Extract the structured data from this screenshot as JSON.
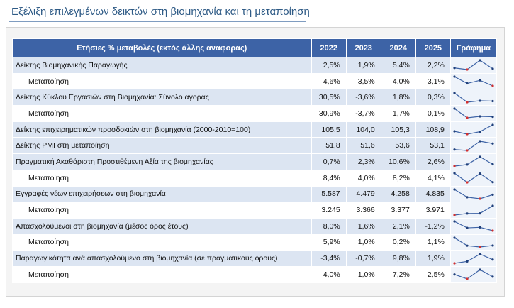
{
  "header": {
    "title": "Εξέλιξη επιλεγμένων δεικτών στη βιομηχανία και τη μεταποίηση"
  },
  "table": {
    "columns": [
      "Ετήσιες % μεταβολές (εκτός άλλης αναφοράς)",
      "2022",
      "2023",
      "2024",
      "2025",
      "Γράφημα"
    ],
    "rows": [
      {
        "label": "Δείκτης Βιομηχανικής Παραγωγής",
        "sub": false,
        "values": [
          2.5,
          1.9,
          5.4,
          2.2
        ],
        "value_labels": [
          "2,5%",
          "1,9%",
          "5.4%",
          "2,2%"
        ]
      },
      {
        "label": "Μεταποίηση",
        "sub": true,
        "values": [
          4.6,
          3.5,
          4.0,
          3.1
        ],
        "value_labels": [
          "4,6%",
          "3,5%",
          "4.0%",
          "3,1%"
        ]
      },
      {
        "label": "Δείκτης Κύκλου Εργασιών στη Βιομηχανία: Σύνολο αγοράς",
        "sub": false,
        "values": [
          30.5,
          -3.6,
          1.8,
          0.3
        ],
        "value_labels": [
          "30,5%",
          "-3,6%",
          "1,8%",
          "0,3%"
        ]
      },
      {
        "label": "Μεταποίηση",
        "sub": true,
        "values": [
          30.9,
          -3.7,
          1.7,
          0.1
        ],
        "value_labels": [
          "30,9%",
          "-3,7%",
          "1,7%",
          "0,1%"
        ]
      },
      {
        "label": "Δείκτης επιχειρηματικών προσδοκιών στη βιομηχανία (2000-2010=100)",
        "sub": false,
        "values": [
          105.5,
          104.0,
          105.3,
          108.9
        ],
        "value_labels": [
          "105,5",
          "104,0",
          "105,3",
          "108,9"
        ]
      },
      {
        "label": "Δείκτης PMI στη μεταποίηση",
        "sub": false,
        "values": [
          51.8,
          51.6,
          53.6,
          53.1
        ],
        "value_labels": [
          "51,8",
          "51,6",
          "53,6",
          "53,1"
        ]
      },
      {
        "label": "Πραγματική Ακαθάριστη Προστιθέμενη Αξία της βιομηχανίας",
        "sub": false,
        "values": [
          0.7,
          2.3,
          10.6,
          2.6
        ],
        "value_labels": [
          "0,7%",
          "2,3%",
          "10,6%",
          "2,6%"
        ]
      },
      {
        "label": "Μεταποίηση",
        "sub": true,
        "values": [
          8.4,
          4.0,
          8.2,
          4.1
        ],
        "value_labels": [
          "8,4%",
          "4,0%",
          "8,2%",
          "4,1%"
        ]
      },
      {
        "label": "Εγγραφές νέων επιχειρήσεων στη βιομηχανία",
        "sub": false,
        "values": [
          5587,
          4479,
          4258,
          4835
        ],
        "value_labels": [
          "5.587",
          "4.479",
          "4.258",
          "4.835"
        ]
      },
      {
        "label": "Μεταποίηση",
        "sub": true,
        "values": [
          3245,
          3366,
          3377,
          3971
        ],
        "value_labels": [
          "3.245",
          "3.366",
          "3.377",
          "3.971"
        ]
      },
      {
        "label": "Απασχολούμενοι στη βιομηχανία (μέσος όρος έτους)",
        "sub": false,
        "values": [
          8.0,
          1.6,
          2.1,
          -1.2
        ],
        "value_labels": [
          "8,0%",
          "1,6%",
          "2,1%",
          "-1,2%"
        ]
      },
      {
        "label": "Μεταποίηση",
        "sub": true,
        "values": [
          5.9,
          1.0,
          0.2,
          1.1
        ],
        "value_labels": [
          "5,9%",
          "1,0%",
          "0,2%",
          "1,1%"
        ]
      },
      {
        "label": "Παραγωγικότητα ανά απασχολούμενο στη βιομηχανία (σε πραγματικούς όρους)",
        "sub": false,
        "values": [
          -3.4,
          -0.7,
          9.8,
          1.9
        ],
        "value_labels": [
          "-3,4%",
          "-0,7%",
          "9,8%",
          "1,9%"
        ]
      },
      {
        "label": "Μεταποίηση",
        "sub": true,
        "values": [
          4.0,
          1.0,
          7.2,
          2.5
        ],
        "value_labels": [
          "4,0%",
          "1,0%",
          "7,2%",
          "2,5%"
        ]
      }
    ]
  }
}
